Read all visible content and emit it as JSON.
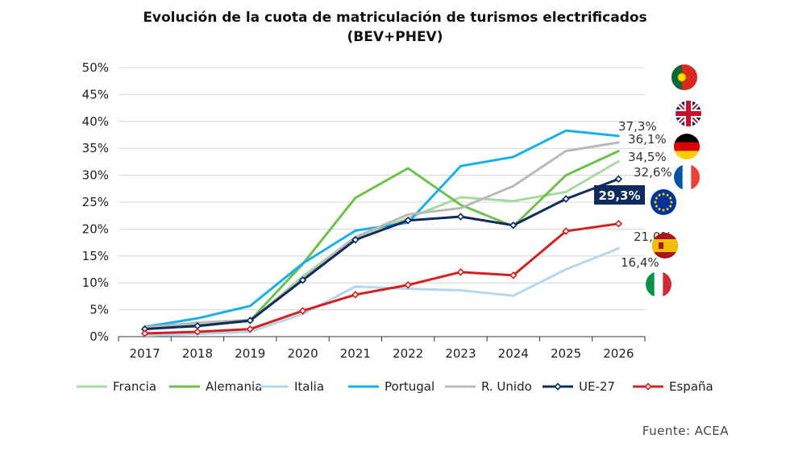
{
  "chart_data": {
    "type": "line",
    "title_line1": "Evolución de la cuota de matriculación de turismos electrificados",
    "title_line2": "(BEV+PHEV)",
    "categories": [
      "2017",
      "2018",
      "2019",
      "2020",
      "2021",
      "2022",
      "2023",
      "2024",
      "2025",
      "2026"
    ],
    "y_ticks": [
      "0%",
      "5%",
      "10%",
      "15%",
      "20%",
      "25%",
      "30%",
      "35%",
      "40%",
      "45%",
      "50%"
    ],
    "ylim": [
      0,
      50
    ],
    "grid": "horizontal",
    "legend_position": "bottom",
    "series": [
      {
        "name": "Francia",
        "color": "#a8d9a0",
        "width": 3,
        "marker": false,
        "values": [
          1.7,
          2.1,
          2.8,
          11.2,
          18.5,
          22.0,
          25.9,
          25.2,
          26.9,
          32.6
        ],
        "end_label": "32,6%"
      },
      {
        "name": "Alemania",
        "color": "#6cc24a",
        "width": 3,
        "marker": false,
        "values": [
          1.6,
          1.9,
          3.0,
          13.5,
          25.8,
          31.3,
          24.5,
          20.5,
          30.0,
          34.5
        ],
        "end_label": "34,5%"
      },
      {
        "name": "Italia",
        "color": "#b5d6ee",
        "width": 3,
        "marker": false,
        "values": [
          0.2,
          0.5,
          0.9,
          4.2,
          9.3,
          8.9,
          8.6,
          7.6,
          12.5,
          16.4
        ],
        "end_label": "16,4%"
      },
      {
        "name": "Portugal",
        "color": "#1aafe6",
        "width": 3,
        "marker": false,
        "values": [
          1.8,
          3.4,
          5.7,
          13.6,
          19.7,
          21.2,
          31.7,
          33.4,
          38.3,
          37.3
        ],
        "end_label": "37,3%"
      },
      {
        "name": "R. Unido",
        "color": "#b9b9b9",
        "width": 3,
        "marker": false,
        "values": [
          1.7,
          2.6,
          3.1,
          10.7,
          18.5,
          22.7,
          23.9,
          28.0,
          34.5,
          36.1
        ],
        "end_label": "36,1%"
      },
      {
        "name": "UE-27",
        "color": "#0f2a5c",
        "width": 3,
        "marker": true,
        "values": [
          1.4,
          2.0,
          3.0,
          10.5,
          18.0,
          21.6,
          22.3,
          20.7,
          25.6,
          29.3
        ],
        "end_label": "29,3%"
      },
      {
        "name": "España",
        "color": "#d42020",
        "width": 3,
        "marker": true,
        "values": [
          0.6,
          0.9,
          1.4,
          4.8,
          7.8,
          9.6,
          12.0,
          11.4,
          19.6,
          21.0
        ],
        "end_label": "21,0%"
      }
    ]
  },
  "flags": [
    {
      "icon": "portugal-flag-icon",
      "colors": [
        "#046a38",
        "#da291c"
      ]
    },
    {
      "icon": "uk-flag-icon",
      "colors": [
        "#012169",
        "#ffffff",
        "#c8102e"
      ]
    },
    {
      "icon": "germany-flag-icon",
      "colors": [
        "#000000",
        "#dd0000",
        "#ffce00"
      ]
    },
    {
      "icon": "france-flag-icon",
      "colors": [
        "#0055a4",
        "#ffffff",
        "#ef4135"
      ]
    },
    {
      "icon": "eu-flag-icon",
      "colors": [
        "#003399",
        "#ffcc00"
      ]
    },
    {
      "icon": "spain-flag-icon",
      "colors": [
        "#aa151b",
        "#f1bf00"
      ]
    },
    {
      "icon": "italy-flag-icon",
      "colors": [
        "#009246",
        "#ffffff",
        "#ce2b37"
      ]
    }
  ],
  "source": "Fuente: ACEA"
}
